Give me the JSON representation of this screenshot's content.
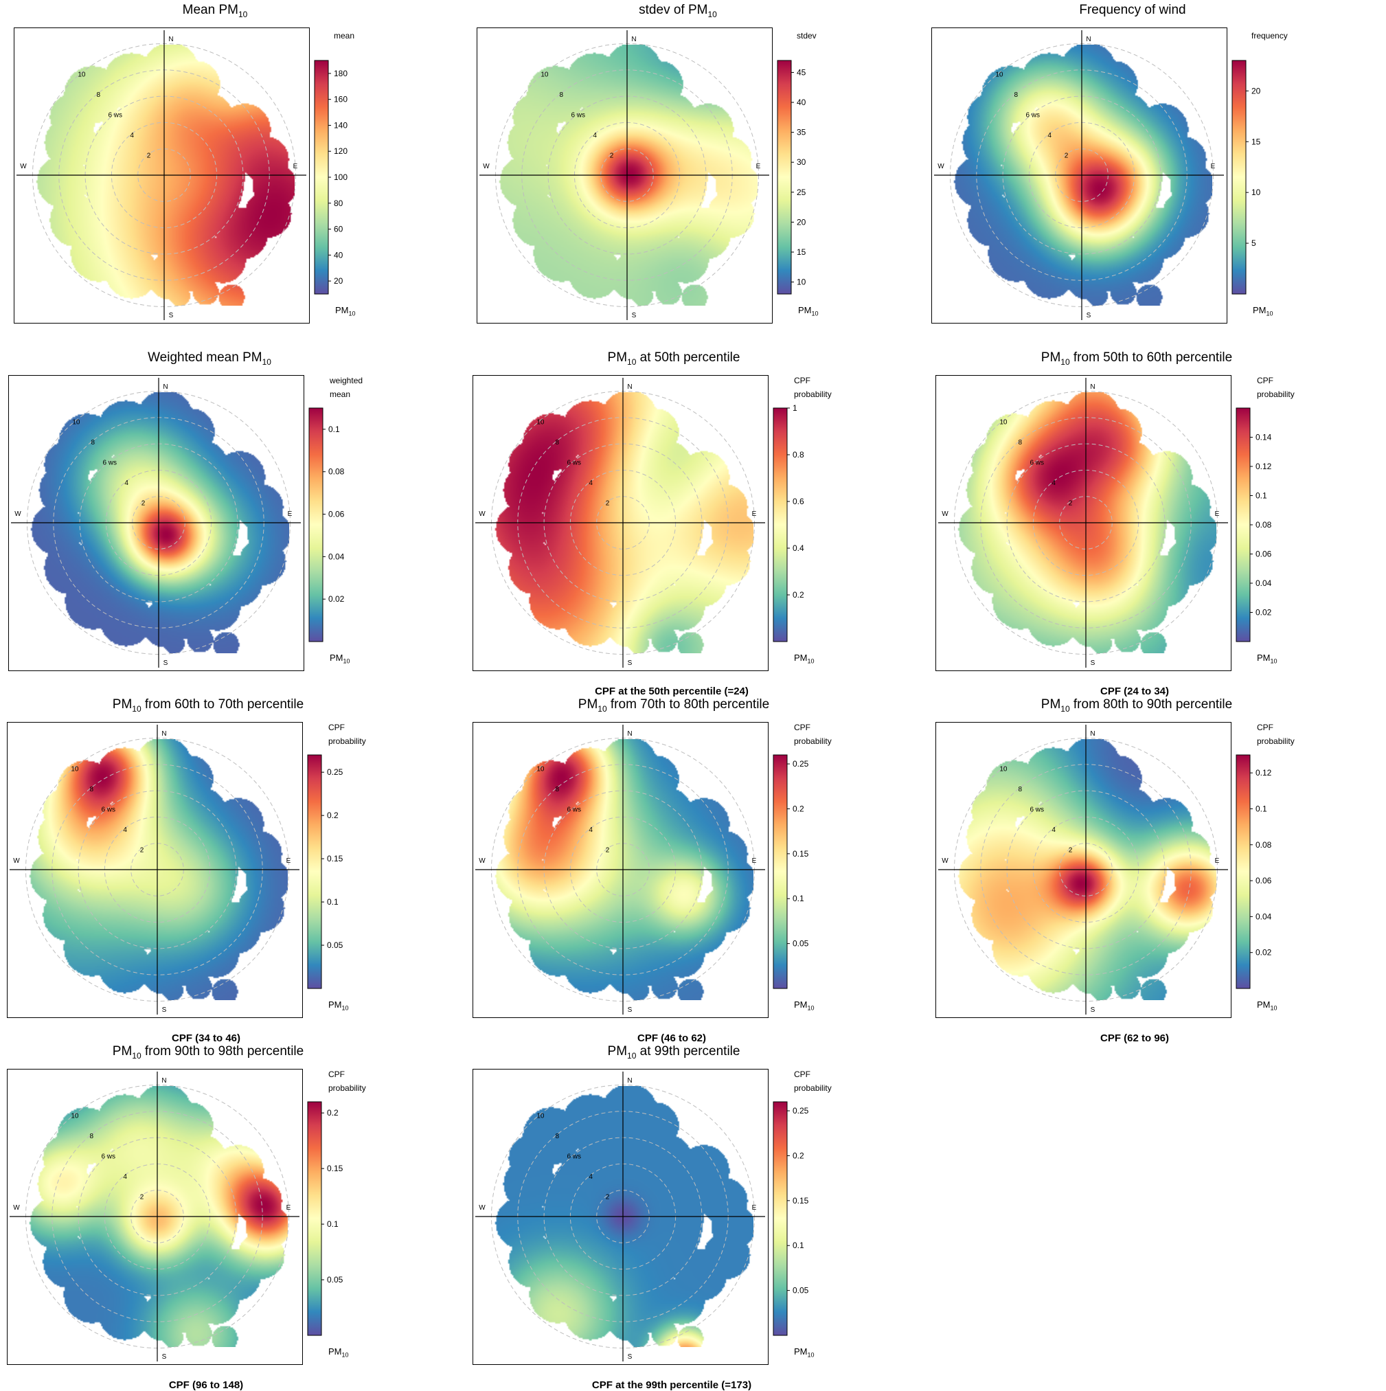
{
  "page": {
    "background": "#ffffff"
  },
  "colors": {
    "scale": [
      "#5E4FA2",
      "#3288BD",
      "#66C2A5",
      "#ABDDA4",
      "#E6F598",
      "#FFFFBF",
      "#FEE08B",
      "#FDAE61",
      "#F46D43",
      "#D53E4F",
      "#9E0142"
    ],
    "grid": "#bdbdbd",
    "axis": "#000000",
    "frame": "#000000"
  },
  "chart_data": [
    {
      "id": "mean",
      "type": "heatmap",
      "title": {
        "pre": "Mean PM",
        "sub": "10",
        "post": ""
      },
      "legend": {
        "title_lines": [
          "mean"
        ],
        "ticks": [
          "20",
          "40",
          "60",
          "80",
          "100",
          "120",
          "140",
          "160",
          "180"
        ],
        "range": [
          10,
          190
        ]
      },
      "variable": {
        "main": "PM",
        "sub": "10"
      },
      "caption": "",
      "compass": [
        "N",
        "E",
        "S",
        "W"
      ],
      "rings": [
        "2",
        "4",
        "6 ws",
        "8",
        "10"
      ],
      "field": {
        "base": 0.45,
        "blobs": [
          [
            0.8,
            0.0,
            0.9,
            0.9,
            0.7
          ],
          [
            0.75,
            -0.3,
            0.9,
            0.6,
            0.4
          ],
          [
            0.3,
            0.55,
            0.4,
            1.0,
            0.5
          ],
          [
            0.5,
            0.6,
            0.2,
            1.5,
            -0.2
          ],
          [
            0.7,
            -0.5,
            0.7,
            -0.8,
            0.45
          ],
          [
            0.4,
            0.9,
            -0.5,
            1.2,
            -0.4
          ],
          [
            0.3,
            0.0,
            0.3,
            0.5,
            -0.3
          ]
        ]
      }
    },
    {
      "id": "stdev",
      "type": "heatmap",
      "title": {
        "pre": "stdev of PM",
        "sub": "10",
        "post": ""
      },
      "legend": {
        "title_lines": [
          "stdev"
        ],
        "ticks": [
          "10",
          "15",
          "20",
          "25",
          "30",
          "35",
          "40",
          "45"
        ],
        "range": [
          8,
          47
        ]
      },
      "variable": {
        "main": "PM",
        "sub": "10"
      },
      "caption": "",
      "compass": [
        "N",
        "E",
        "S",
        "W"
      ],
      "rings": [
        "2",
        "4",
        "6 ws",
        "8",
        "10"
      ],
      "field": {
        "base": 0.45,
        "blobs": [
          [
            0.0,
            0.0,
            0.2,
            1.2,
            0.8
          ],
          [
            0.75,
            -0.1,
            0.5,
            0.9,
            0.4
          ],
          [
            0.2,
            0.2,
            0.4,
            1.0,
            0.25
          ],
          [
            -0.6,
            0.5,
            0.5,
            1.2,
            0.2
          ],
          [
            0.5,
            -0.6,
            0.3,
            1.0,
            -0.2
          ],
          [
            0.6,
            0.8,
            -0.4,
            1.4,
            -0.3
          ],
          [
            -0.3,
            0.8,
            -0.5,
            1.2,
            -0.2
          ]
        ]
      }
    },
    {
      "id": "frequency",
      "type": "heatmap",
      "title": {
        "pre": "Frequency of wind",
        "sub": "",
        "post": ""
      },
      "legend": {
        "title_lines": [
          "frequency"
        ],
        "ticks": [
          "5",
          "10",
          "15",
          "20"
        ],
        "range": [
          0,
          23
        ]
      },
      "variable": {
        "main": "PM",
        "sub": "10"
      },
      "caption": "",
      "compass": [
        "N",
        "E",
        "S",
        "W"
      ],
      "rings": [
        "2",
        "4",
        "6 ws",
        "8",
        "10"
      ],
      "field": {
        "base": 0.08,
        "blobs": [
          [
            0.12,
            -0.2,
            0.25,
            1.5,
            0.85
          ],
          [
            -0.28,
            0.42,
            0.28,
            1.2,
            0.65
          ],
          [
            0.2,
            -0.02,
            0.3,
            0.7,
            0.4
          ],
          [
            0.0,
            0.1,
            0.35,
            0.9,
            0.3
          ],
          [
            0.4,
            0.0,
            0.2,
            1.0,
            0.2
          ]
        ]
      }
    },
    {
      "id": "weighted-mean",
      "type": "heatmap",
      "title": {
        "pre": "Weighted mean PM",
        "sub": "10",
        "post": ""
      },
      "legend": {
        "title_lines": [
          "weighted",
          "mean"
        ],
        "ticks": [
          "0.02",
          "0.04",
          "0.06",
          "0.08",
          "0.1"
        ],
        "range": [
          0,
          0.11
        ]
      },
      "variable": {
        "main": "PM",
        "sub": "10"
      },
      "caption": "",
      "compass": [
        "N",
        "E",
        "S",
        "W"
      ],
      "rings": [
        "2",
        "4",
        "6 ws",
        "8",
        "10"
      ],
      "field": {
        "base": 0.05,
        "blobs": [
          [
            0.05,
            -0.12,
            0.2,
            1.5,
            0.9
          ],
          [
            -0.2,
            0.35,
            0.3,
            1.2,
            0.35
          ],
          [
            0.35,
            -0.15,
            0.3,
            0.9,
            0.25
          ],
          [
            0.0,
            0.1,
            0.3,
            0.9,
            0.2
          ]
        ]
      }
    },
    {
      "id": "cpf-50",
      "type": "heatmap",
      "title": {
        "pre": "PM",
        "sub": "10",
        "post": " at 50th percentile"
      },
      "legend": {
        "title_lines": [
          "CPF",
          "probability"
        ],
        "ticks": [
          "0.2",
          "0.4",
          "0.6",
          "0.8",
          "1"
        ],
        "range": [
          0,
          1
        ]
      },
      "variable": {
        "main": "PM",
        "sub": "10"
      },
      "caption": "CPF at the 50th percentile (=24)",
      "compass": [
        "N",
        "E",
        "S",
        "W"
      ],
      "rings": [
        "2",
        "4",
        "6 ws",
        "8",
        "10"
      ],
      "field": {
        "base": 0.45,
        "blobs": [
          [
            -0.85,
            0.3,
            0.6,
            1.5,
            0.55
          ],
          [
            -0.55,
            -0.6,
            0.6,
            1.5,
            0.5
          ],
          [
            -0.35,
            0.85,
            0.5,
            1.5,
            0.45
          ],
          [
            0.85,
            0.0,
            0.5,
            1.3,
            0.45
          ],
          [
            0.5,
            -0.7,
            0.4,
            1.0,
            -0.2
          ],
          [
            0.1,
            0.1,
            0.35,
            0.9,
            -0.2
          ],
          [
            0.4,
            0.5,
            0.3,
            1.0,
            -0.25
          ],
          [
            0.3,
            -0.95,
            0.2,
            1.5,
            -0.2
          ]
        ]
      }
    },
    {
      "id": "cpf-50-60",
      "type": "heatmap",
      "title": {
        "pre": "PM",
        "sub": "10",
        "post": "  from 50th to 60th percentile"
      },
      "legend": {
        "title_lines": [
          "CPF",
          "probability"
        ],
        "ticks": [
          "0.02",
          "0.04",
          "0.06",
          "0.08",
          "0.1",
          "0.12",
          "0.14"
        ],
        "range": [
          0,
          0.16
        ]
      },
      "variable": {
        "main": "PM",
        "sub": "10"
      },
      "caption": "CPF (24 to 34)",
      "compass": [
        "N",
        "E",
        "S",
        "W"
      ],
      "rings": [
        "2",
        "4",
        "6 ws",
        "8",
        "10"
      ],
      "field": {
        "base": 0.2,
        "blobs": [
          [
            0.05,
            0.9,
            0.4,
            1.5,
            0.7
          ],
          [
            -0.35,
            0.35,
            0.3,
            1.3,
            0.6
          ],
          [
            0.15,
            -0.3,
            0.35,
            1.2,
            0.55
          ],
          [
            0.0,
            0.1,
            0.45,
            0.9,
            0.3
          ],
          [
            0.3,
            0.55,
            0.25,
            1.0,
            0.3
          ],
          [
            -0.6,
            -0.3,
            0.5,
            1.0,
            0.2
          ],
          [
            0.7,
            -0.3,
            0.3,
            1.0,
            -0.15
          ]
        ]
      }
    },
    {
      "id": "cpf-60-70",
      "type": "heatmap",
      "title": {
        "pre": "PM",
        "sub": "10",
        "post": " from 60th to 70th percentile"
      },
      "legend": {
        "title_lines": [
          "CPF",
          "probability"
        ],
        "ticks": [
          "0.05",
          "0.1",
          "0.15",
          "0.2",
          "0.25"
        ],
        "range": [
          0,
          0.27
        ]
      },
      "variable": {
        "main": "PM",
        "sub": "10"
      },
      "caption": "CPF (34 to 46)",
      "compass": [
        "N",
        "E",
        "S",
        "W"
      ],
      "rings": [
        "2",
        "4",
        "6 ws",
        "8",
        "10"
      ],
      "field": {
        "base": 0.05,
        "blobs": [
          [
            -0.4,
            0.8,
            0.25,
            1.5,
            0.9
          ],
          [
            -0.6,
            0.4,
            0.35,
            1.0,
            0.45
          ],
          [
            -0.3,
            0.2,
            0.4,
            0.8,
            0.3
          ],
          [
            0.25,
            -0.15,
            0.3,
            1.0,
            0.3
          ],
          [
            -0.7,
            -0.3,
            0.6,
            1.0,
            0.15
          ]
        ]
      }
    },
    {
      "id": "cpf-70-80",
      "type": "heatmap",
      "title": {
        "pre": "PM",
        "sub": "10",
        "post": " from 70th to 80th percentile"
      },
      "legend": {
        "title_lines": [
          "CPF",
          "probability"
        ],
        "ticks": [
          "0.05",
          "0.1",
          "0.15",
          "0.2",
          "0.25"
        ],
        "range": [
          0,
          0.26
        ]
      },
      "variable": {
        "main": "PM",
        "sub": "10"
      },
      "caption": "CPF (46 to 62)",
      "compass": [
        "N",
        "E",
        "S",
        "W"
      ],
      "rings": [
        "2",
        "4",
        "6 ws",
        "8",
        "10"
      ],
      "field": {
        "base": 0.08,
        "blobs": [
          [
            -0.45,
            0.8,
            0.25,
            1.5,
            0.85
          ],
          [
            -0.75,
            0.0,
            0.35,
            1.0,
            0.4
          ],
          [
            0.5,
            -0.2,
            0.2,
            1.3,
            0.45
          ],
          [
            -0.6,
            0.4,
            0.35,
            1.0,
            0.45
          ],
          [
            -0.2,
            0.0,
            0.45,
            0.7,
            0.3
          ]
        ]
      }
    },
    {
      "id": "cpf-80-90",
      "type": "heatmap",
      "title": {
        "pre": "PM",
        "sub": "10",
        "post": " from 80th to 90th percentile"
      },
      "legend": {
        "title_lines": [
          "CPF",
          "probability"
        ],
        "ticks": [
          "0.02",
          "0.04",
          "0.06",
          "0.08",
          "0.1",
          "0.12"
        ],
        "range": [
          0,
          0.13
        ]
      },
      "variable": {
        "main": "PM",
        "sub": "10"
      },
      "caption": "CPF (62 to 96)",
      "compass": [
        "N",
        "E",
        "S",
        "W"
      ],
      "rings": [
        "2",
        "4",
        "6 ws",
        "8",
        "10"
      ],
      "field": {
        "base": 0.12,
        "blobs": [
          [
            0.8,
            -0.15,
            0.25,
            1.2,
            0.9
          ],
          [
            0.0,
            -0.1,
            0.18,
            1.5,
            0.75
          ],
          [
            -0.6,
            0.1,
            0.6,
            1.0,
            0.45
          ],
          [
            -0.6,
            -0.5,
            0.5,
            1.2,
            0.45
          ],
          [
            0.2,
            0.7,
            0.4,
            1.0,
            -0.15
          ]
        ]
      }
    },
    {
      "id": "cpf-90-98",
      "type": "heatmap",
      "title": {
        "pre": "PM",
        "sub": "10",
        "post": " from 90th to 98th percentile"
      },
      "legend": {
        "title_lines": [
          "CPF",
          "probability"
        ],
        "ticks": [
          "0.05",
          "0.1",
          "0.15",
          "0.2"
        ],
        "range": [
          0,
          0.21
        ]
      },
      "variable": {
        "main": "PM",
        "sub": "10"
      },
      "caption": "CPF (96 to 148)",
      "compass": [
        "N",
        "E",
        "S",
        "W"
      ],
      "rings": [
        "2",
        "4",
        "6 ws",
        "8",
        "10"
      ],
      "field": {
        "base": 0.08,
        "blobs": [
          [
            0.85,
            0.05,
            0.25,
            1.3,
            0.85
          ],
          [
            0.0,
            -0.05,
            0.2,
            1.5,
            0.55
          ],
          [
            -0.75,
            0.25,
            0.25,
            1.2,
            0.45
          ],
          [
            -0.15,
            0.55,
            0.3,
            1.3,
            0.35
          ],
          [
            0.55,
            0.4,
            0.3,
            1.0,
            0.35
          ],
          [
            0.3,
            -0.9,
            0.25,
            1.2,
            0.25
          ]
        ]
      }
    },
    {
      "id": "cpf-99",
      "type": "heatmap",
      "title": {
        "pre": "PM",
        "sub": "10",
        "post": " at 99th percentile"
      },
      "legend": {
        "title_lines": [
          "CPF",
          "probability"
        ],
        "ticks": [
          "0.05",
          "0.1",
          "0.15",
          "0.2",
          "0.25"
        ],
        "range": [
          0,
          0.26
        ]
      },
      "variable": {
        "main": "PM",
        "sub": "10"
      },
      "caption": "CPF at the 99th percentile (=173)",
      "compass": [
        "N",
        "E",
        "S",
        "W"
      ],
      "rings": [
        "2",
        "4",
        "6 ws",
        "8",
        "10"
      ],
      "field": {
        "base": 0.0,
        "blobs": [
          [
            0.48,
            -1.1,
            0.15,
            1.5,
            0.85
          ],
          [
            0.0,
            0.0,
            0.1,
            1.5,
            -0.1
          ],
          [
            -0.5,
            -0.75,
            0.3,
            1.0,
            0.3
          ]
        ]
      }
    }
  ]
}
